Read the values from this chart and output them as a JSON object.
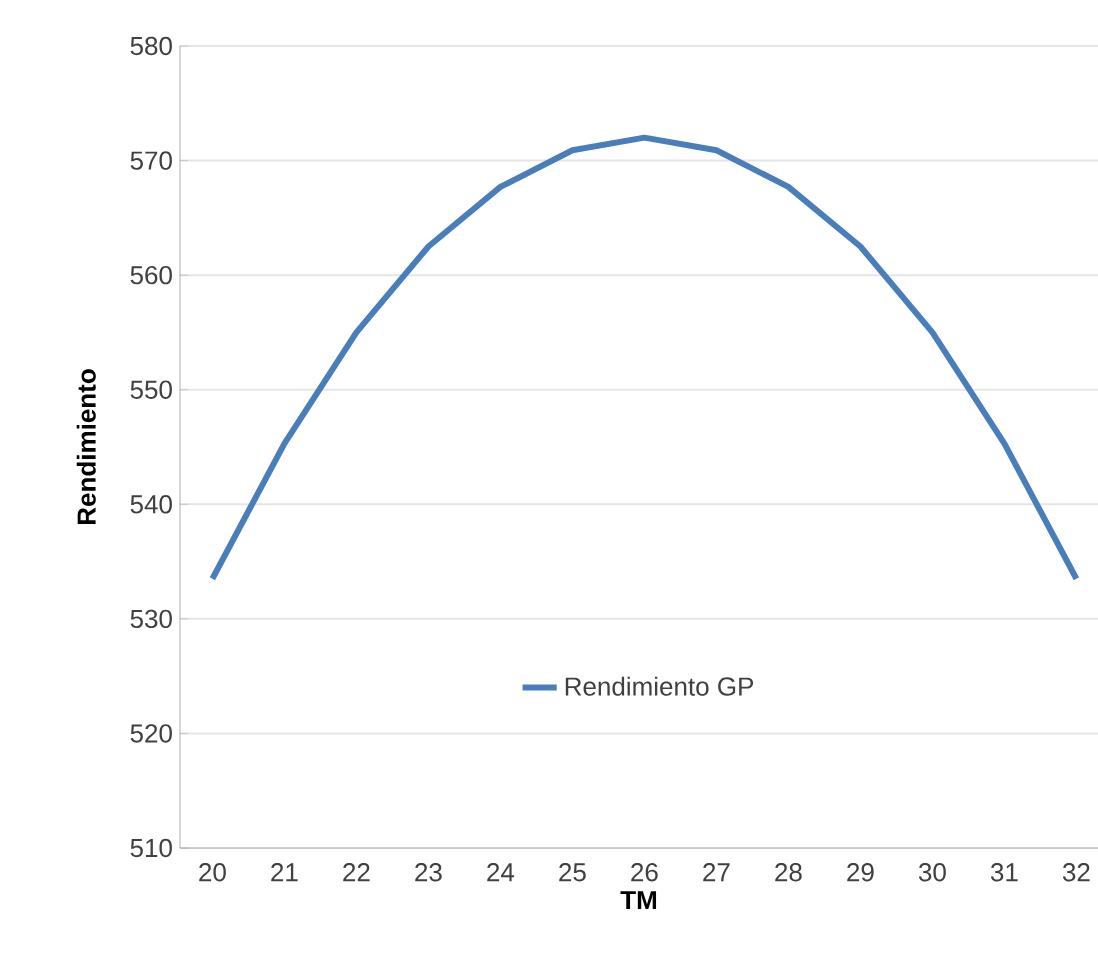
{
  "chart_data": {
    "type": "line",
    "xlabel": "TM",
    "ylabel": "Rendimiento",
    "categories": [
      "20",
      "21",
      "22",
      "23",
      "24",
      "25",
      "26",
      "27",
      "28",
      "29",
      "30",
      "31",
      "32"
    ],
    "series": [
      {
        "name": "Rendimiento GP",
        "color": "#4a7ebb",
        "values": [
          533.5,
          545.3,
          555,
          562.5,
          567.7,
          570.9,
          572,
          570.9,
          567.7,
          562.5,
          555,
          545.3,
          533.5
        ]
      }
    ],
    "ylim": [
      510,
      580
    ],
    "yticks": [
      510,
      520,
      530,
      540,
      550,
      560,
      570,
      580
    ],
    "grid": "y",
    "legend": "bottom",
    "marker": "none",
    "line_style": "solid"
  }
}
